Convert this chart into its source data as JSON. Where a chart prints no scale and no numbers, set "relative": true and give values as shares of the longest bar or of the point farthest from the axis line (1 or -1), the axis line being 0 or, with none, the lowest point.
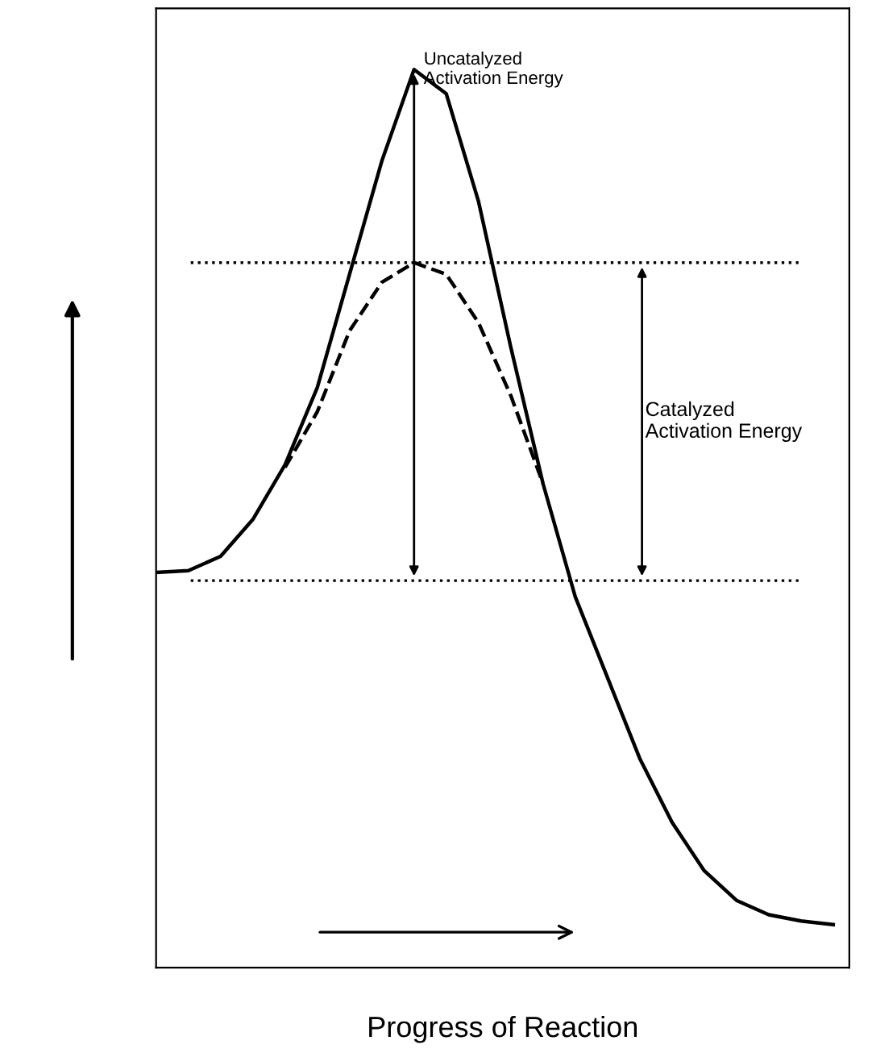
{
  "chart_data": {
    "type": "line",
    "relative": true,
    "xlabel": "Progress of Reaction",
    "categories": [
      null,
      null,
      null,
      null,
      null,
      null,
      null,
      null,
      null,
      null,
      null,
      null,
      null,
      null,
      null,
      null,
      null,
      null,
      null,
      null,
      null,
      null
    ],
    "series": [
      {
        "color": "#000000",
        "line_style": "solid",
        "values": [
          0.44,
          0.442,
          0.458,
          0.499,
          0.56,
          0.646,
          0.772,
          0.898,
          1.0,
          0.973,
          0.853,
          0.691,
          0.539,
          0.413,
          0.323,
          0.233,
          0.162,
          0.108,
          0.075,
          0.059,
          0.052,
          0.048
        ]
      },
      {
        "color": "#000000",
        "line_style": "dashed",
        "values": [
          null,
          null,
          null,
          null,
          0.557,
          0.619,
          0.709,
          0.763,
          0.785,
          0.772,
          0.718,
          0.637,
          0.539,
          null,
          null,
          null,
          null,
          null,
          null,
          null,
          null,
          null
        ]
      }
    ],
    "ref_lines": [
      {
        "axis": "y",
        "value": 0.785,
        "line_style": "dotted",
        "color": "#000000"
      },
      {
        "axis": "y",
        "value": 0.431,
        "line_style": "dotted",
        "color": "#000000"
      }
    ],
    "annotations": [
      "Uncatalyzed Activation Energy",
      "Catalyzed Activation Energy"
    ],
    "marker": "none",
    "grid": false,
    "legend": false
  }
}
